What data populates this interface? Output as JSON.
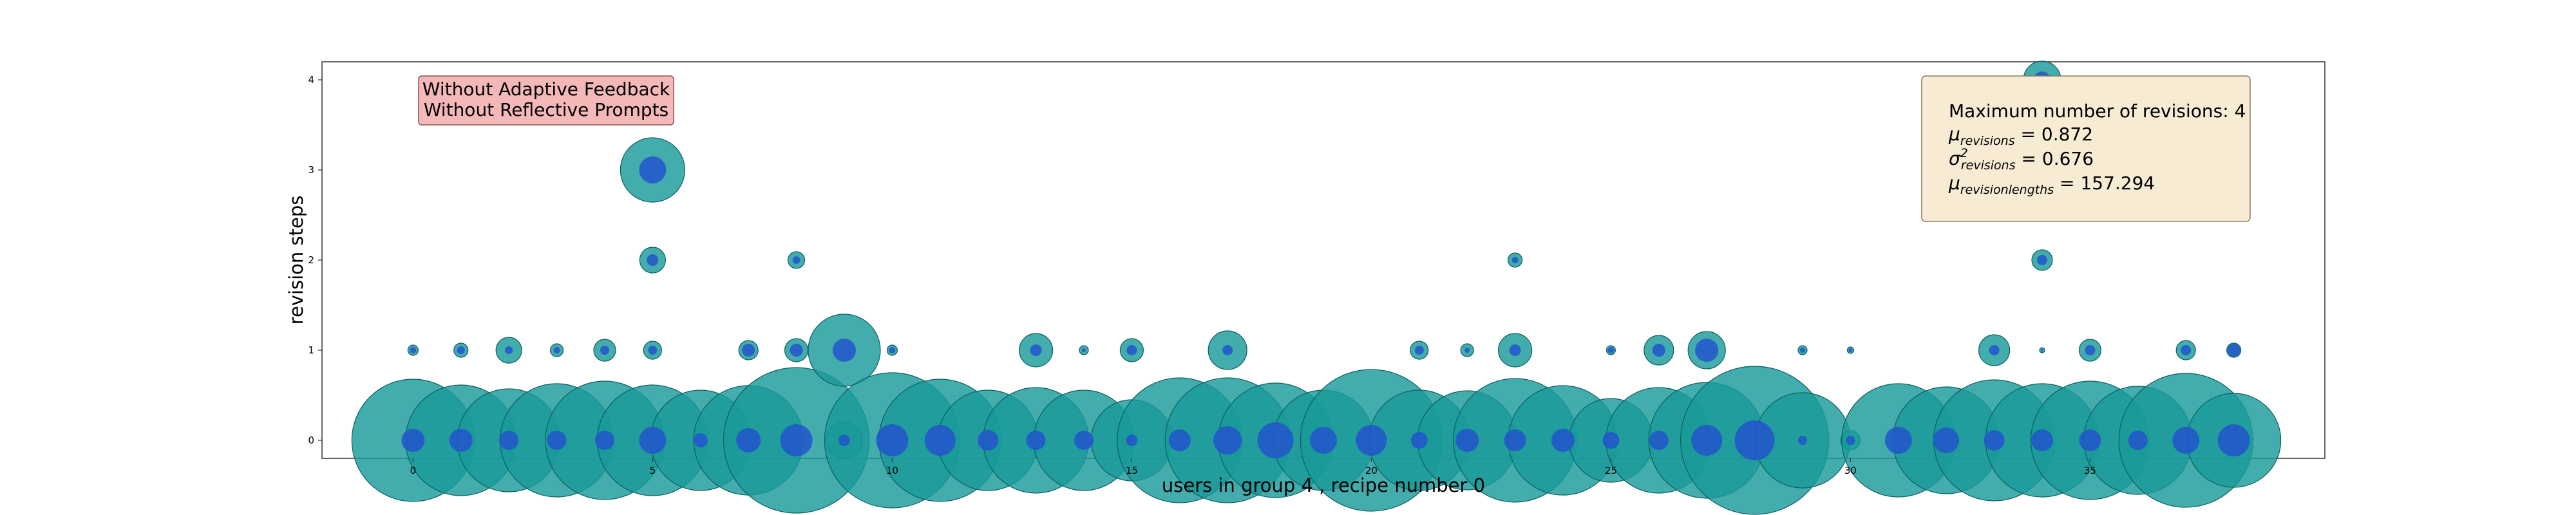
{
  "chart_data": {
    "type": "scatter",
    "xlabel": "users in group 4 , recipe number 0",
    "ylabel": "revision steps",
    "xlim": [
      -1.9,
      39.9
    ],
    "ylim": [
      -0.2,
      4.2
    ],
    "xticks": [
      0,
      5,
      10,
      15,
      20,
      25,
      30,
      35
    ],
    "yticks": [
      0,
      1,
      2,
      3,
      4
    ],
    "grid": false,
    "colors": {
      "outer": "#1a9a9a",
      "inner": "#2255cc",
      "edge": "#0c5f5f"
    },
    "condition_box": {
      "lines": [
        "Without Adaptive Feedback",
        "Without Reflective Prompts"
      ],
      "facecolor": "#f4b8b8",
      "placement": "top-left"
    },
    "stats_box": {
      "max_label": "Maximum number of revisions: 4",
      "mu_revisions": "0.872",
      "sigma2_revisions": "0.676",
      "mu_revision_lengths": "157.294",
      "facecolor": "#f8ebd3",
      "placement": "top-right"
    },
    "points": [
      {
        "x": 0,
        "y": 0,
        "outer": 95,
        "inner": 18
      },
      {
        "x": 0,
        "y": 1,
        "outer": 8,
        "inner": 5
      },
      {
        "x": 1,
        "y": 0,
        "outer": 86,
        "inner": 18
      },
      {
        "x": 1,
        "y": 1,
        "outer": 11,
        "inner": 6
      },
      {
        "x": 2,
        "y": 0,
        "outer": 80,
        "inner": 15
      },
      {
        "x": 2,
        "y": 1,
        "outer": 20,
        "inner": 6
      },
      {
        "x": 3,
        "y": 0,
        "outer": 88,
        "inner": 15
      },
      {
        "x": 3,
        "y": 1,
        "outer": 10,
        "inner": 5
      },
      {
        "x": 4,
        "y": 0,
        "outer": 92,
        "inner": 15
      },
      {
        "x": 4,
        "y": 1,
        "outer": 17,
        "inner": 7
      },
      {
        "x": 5,
        "y": 0,
        "outer": 86,
        "inner": 21
      },
      {
        "x": 5,
        "y": 1,
        "outer": 14,
        "inner": 7
      },
      {
        "x": 5,
        "y": 2,
        "outer": 20,
        "inner": 9
      },
      {
        "x": 5,
        "y": 3,
        "outer": 50,
        "inner": 21
      },
      {
        "x": 6,
        "y": 0,
        "outer": 78,
        "inner": 11
      },
      {
        "x": 7,
        "y": 0,
        "outer": 85,
        "inner": 19
      },
      {
        "x": 7,
        "y": 1,
        "outer": 15,
        "inner": 10
      },
      {
        "x": 8,
        "y": 0,
        "outer": 113,
        "inner": 25
      },
      {
        "x": 8,
        "y": 1,
        "outer": 18,
        "inner": 10
      },
      {
        "x": 8,
        "y": 2,
        "outer": 13,
        "inner": 6
      },
      {
        "x": 9,
        "y": 0,
        "outer": 28,
        "inner": 9
      },
      {
        "x": 9,
        "y": 1,
        "outer": 56,
        "inner": 18
      },
      {
        "x": 10,
        "y": 0,
        "outer": 105,
        "inner": 25
      },
      {
        "x": 10,
        "y": 1,
        "outer": 8,
        "inner": 5
      },
      {
        "x": 11,
        "y": 0,
        "outer": 95,
        "inner": 24
      },
      {
        "x": 12,
        "y": 0,
        "outer": 78,
        "inner": 16
      },
      {
        "x": 13,
        "y": 0,
        "outer": 82,
        "inner": 15
      },
      {
        "x": 13,
        "y": 1,
        "outer": 26,
        "inner": 9
      },
      {
        "x": 14,
        "y": 0,
        "outer": 78,
        "inner": 15
      },
      {
        "x": 14,
        "y": 1,
        "outer": 7,
        "inner": 3
      },
      {
        "x": 15,
        "y": 0,
        "outer": 63,
        "inner": 9
      },
      {
        "x": 15,
        "y": 1,
        "outer": 18,
        "inner": 8
      },
      {
        "x": 16,
        "y": 0,
        "outer": 97,
        "inner": 17
      },
      {
        "x": 17,
        "y": 0,
        "outer": 97,
        "inner": 22
      },
      {
        "x": 17,
        "y": 1,
        "outer": 30,
        "inner": 8
      },
      {
        "x": 18,
        "y": 0,
        "outer": 89,
        "inner": 28
      },
      {
        "x": 19,
        "y": 0,
        "outer": 78,
        "inner": 21
      },
      {
        "x": 20,
        "y": 0,
        "outer": 110,
        "inner": 24
      },
      {
        "x": 21,
        "y": 0,
        "outer": 78,
        "inner": 13
      },
      {
        "x": 21,
        "y": 1,
        "outer": 14,
        "inner": 7
      },
      {
        "x": 22,
        "y": 0,
        "outer": 77,
        "inner": 18
      },
      {
        "x": 22,
        "y": 1,
        "outer": 10,
        "inner": 4
      },
      {
        "x": 23,
        "y": 0,
        "outer": 96,
        "inner": 17
      },
      {
        "x": 23,
        "y": 1,
        "outer": 26,
        "inner": 9
      },
      {
        "x": 23,
        "y": 2,
        "outer": 11,
        "inner": 5
      },
      {
        "x": 24,
        "y": 0,
        "outer": 85,
        "inner": 18
      },
      {
        "x": 25,
        "y": 0,
        "outer": 65,
        "inner": 13
      },
      {
        "x": 25,
        "y": 1,
        "outer": 7,
        "inner": 5
      },
      {
        "x": 26,
        "y": 0,
        "outer": 82,
        "inner": 15
      },
      {
        "x": 26,
        "y": 1,
        "outer": 23,
        "inner": 10
      },
      {
        "x": 27,
        "y": 0,
        "outer": 90,
        "inner": 24
      },
      {
        "x": 27,
        "y": 1,
        "outer": 29,
        "inner": 18
      },
      {
        "x": 28,
        "y": 0,
        "outer": 115,
        "inner": 31
      },
      {
        "x": 29,
        "y": 0,
        "outer": 74,
        "inner": 7
      },
      {
        "x": 29,
        "y": 1,
        "outer": 7,
        "inner": 4
      },
      {
        "x": 30,
        "y": 0,
        "outer": 15,
        "inner": 7
      },
      {
        "x": 30,
        "y": 1,
        "outer": 5,
        "inner": 3
      },
      {
        "x": 31,
        "y": 0,
        "outer": 88,
        "inner": 21
      },
      {
        "x": 32,
        "y": 0,
        "outer": 83,
        "inner": 20
      },
      {
        "x": 33,
        "y": 0,
        "outer": 94,
        "inner": 16
      },
      {
        "x": 33,
        "y": 1,
        "outer": 24,
        "inner": 8
      },
      {
        "x": 34,
        "y": 0,
        "outer": 88,
        "inner": 17
      },
      {
        "x": 34,
        "y": 1,
        "outer": 4,
        "inner": 2
      },
      {
        "x": 34,
        "y": 2,
        "outer": 16,
        "inner": 8
      },
      {
        "x": 34,
        "y": 3,
        "outer": 7,
        "inner": 3
      },
      {
        "x": 34,
        "y": 4,
        "outer": 29,
        "inner": 13
      },
      {
        "x": 35,
        "y": 0,
        "outer": 92,
        "inner": 17
      },
      {
        "x": 35,
        "y": 1,
        "outer": 17,
        "inner": 8
      },
      {
        "x": 36,
        "y": 0,
        "outer": 84,
        "inner": 15
      },
      {
        "x": 37,
        "y": 0,
        "outer": 104,
        "inner": 21
      },
      {
        "x": 37,
        "y": 1,
        "outer": 15,
        "inner": 8
      },
      {
        "x": 38,
        "y": 0,
        "outer": 73,
        "inner": 25
      },
      {
        "x": 38,
        "y": 1,
        "outer": 11,
        "inner": 10
      }
    ]
  }
}
